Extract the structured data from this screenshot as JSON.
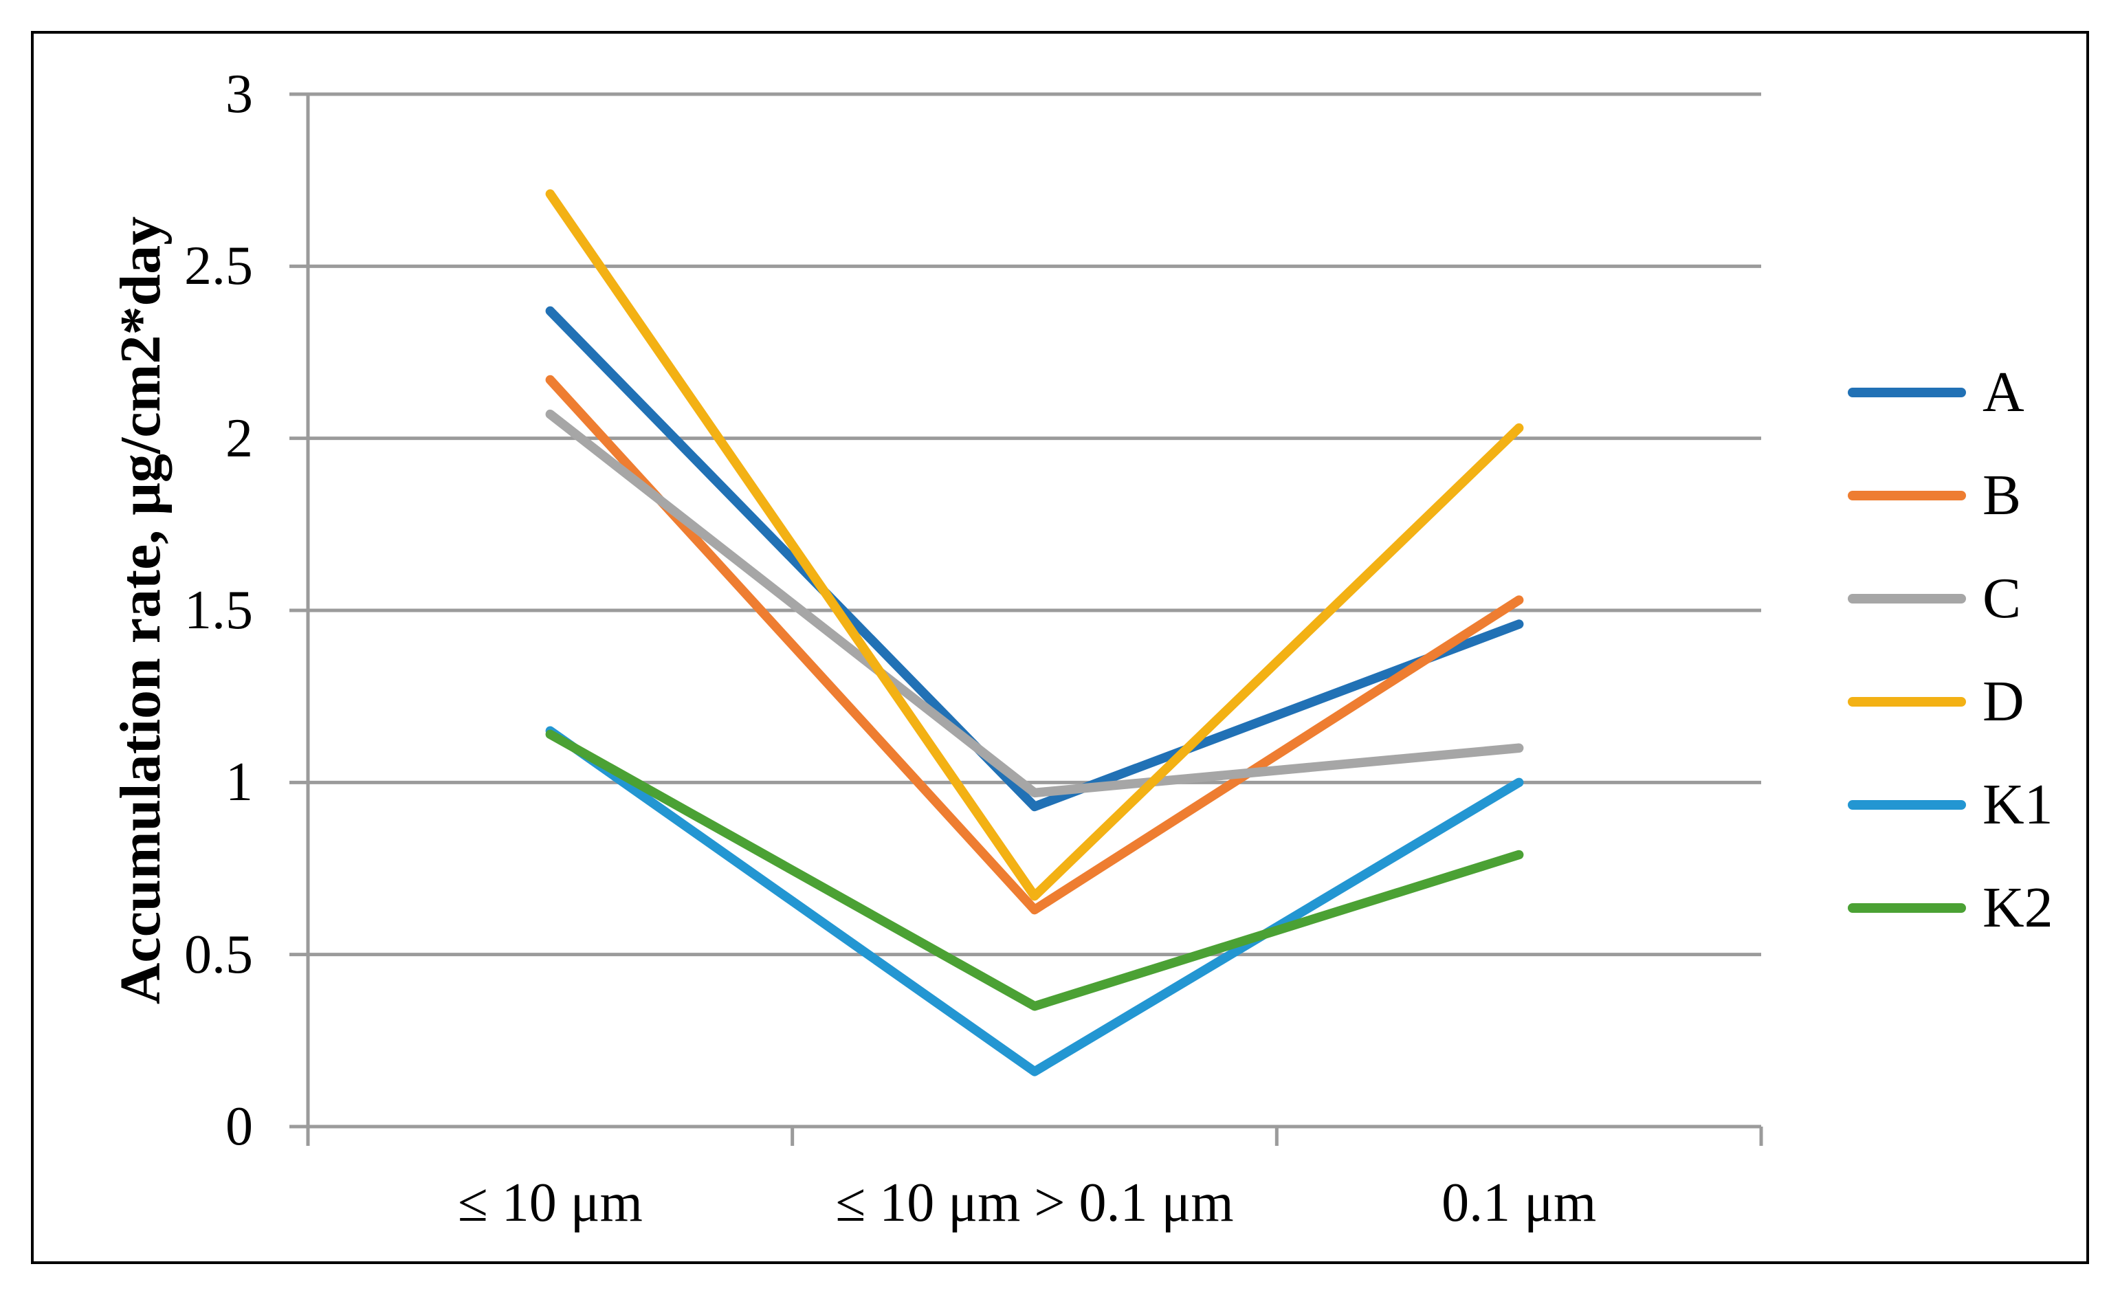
{
  "figure": {
    "border_color": "#000000",
    "background_color": "#ffffff"
  },
  "chart_data": {
    "type": "line",
    "title": "",
    "xlabel": "",
    "ylabel": "Accumulation rate, μg/cm2*day",
    "categories": [
      "≤ 10 μm",
      "≤ 10 μm > 0.1 μm",
      "0.1 μm"
    ],
    "ylim": [
      0,
      3
    ],
    "yticks": [
      0,
      0.5,
      1,
      1.5,
      2,
      2.5,
      3
    ],
    "grid": "horizontal",
    "axis_color": "#9B9B9B",
    "legend_position": "right",
    "series": [
      {
        "name": "A",
        "color": "#2171B5",
        "values": [
          2.37,
          0.93,
          1.46
        ]
      },
      {
        "name": "B",
        "color": "#EE7D31",
        "values": [
          2.17,
          0.63,
          1.53
        ]
      },
      {
        "name": "C",
        "color": "#A6A6A6",
        "values": [
          2.07,
          0.97,
          1.1
        ]
      },
      {
        "name": "D",
        "color": "#F3B114",
        "values": [
          2.71,
          0.67,
          2.03
        ]
      },
      {
        "name": "K1",
        "color": "#2396D2",
        "values": [
          1.15,
          0.16,
          1.0
        ]
      },
      {
        "name": "K2",
        "color": "#4BA134",
        "values": [
          1.14,
          0.35,
          0.79
        ]
      }
    ]
  }
}
